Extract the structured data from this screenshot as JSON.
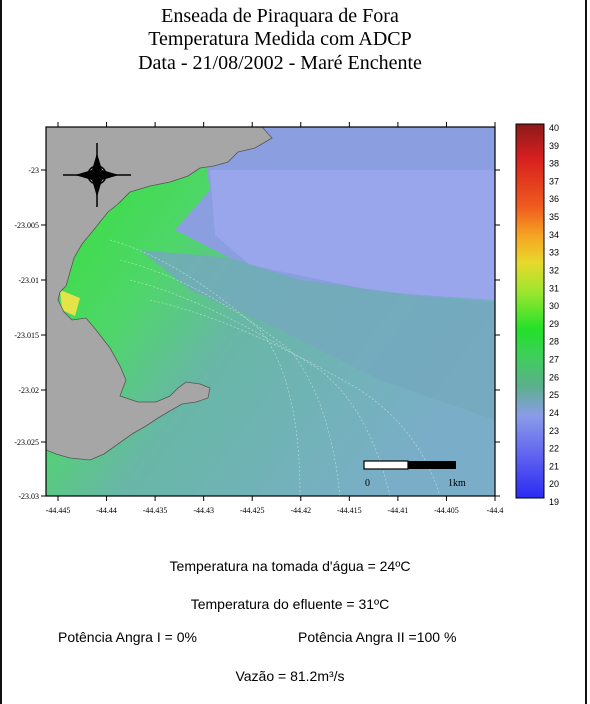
{
  "title_lines": [
    "Enseada de Piraquara de Fora",
    "Temperatura Medida com ADCP",
    "Data - 21/08/2002 - Maré Enchente"
  ],
  "map": {
    "y_ticks": [
      "-23",
      "-23.005",
      "-23.01",
      "-23.015",
      "-23.02",
      "-23.025",
      "-23.03"
    ],
    "x_ticks": [
      "-44.445",
      "-44.44",
      "-44.435",
      "-44.43",
      "-44.425",
      "-44.42",
      "-44.415",
      "-44.41",
      "-44.405",
      "-44.4"
    ],
    "compass_icon": "compass-rose-icon",
    "scale_bar": {
      "start_label": "0",
      "end_label": "1km"
    }
  },
  "colorbar": {
    "min": 19,
    "max": 40,
    "labels": [
      "40",
      "39",
      "38",
      "37",
      "36",
      "35",
      "34",
      "33",
      "32",
      "31",
      "30",
      "29",
      "28",
      "27",
      "26",
      "25",
      "24",
      "23",
      "22",
      "21",
      "20",
      "19"
    ],
    "stops": [
      "#8b1a1a",
      "#d61f1f",
      "#ef5a1e",
      "#f5a623",
      "#e8d82c",
      "#9ce62e",
      "#22e02a",
      "#3ecf5a",
      "#5bb08c",
      "#6b98c7",
      "#8a9ce8",
      "#3a3af0"
    ]
  },
  "colors": {
    "land": "#a6a6a6",
    "water_cool": "#9aa6ec",
    "water_mid": "#78b0c0",
    "water_warm": "#2fe22e",
    "plume_hot": "#e4e44a"
  },
  "info": {
    "intake_temp": "Temperatura na tomada d'água = 24ºC",
    "effluent_temp": "Temperatura do efluente = 31ºC",
    "power_angra1": "Potência Angra I = 0%",
    "power_angra2": "Potência Angra II =100 %",
    "flow_rate": "Vazão = 81.2m³/s"
  }
}
